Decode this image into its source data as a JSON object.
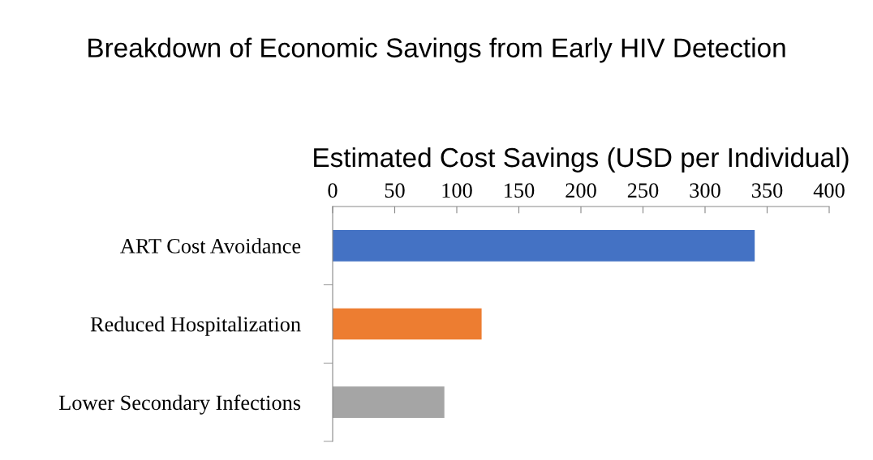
{
  "chart_data": {
    "type": "bar",
    "orientation": "horizontal",
    "title": "Breakdown of Economic Savings from Early HIV Detection",
    "xlabel": "Estimated Cost Savings (USD per Individual)",
    "categories": [
      "ART Cost Avoidance",
      "Reduced Hospitalization",
      "Lower Secondary Infections"
    ],
    "values": [
      340,
      120,
      90
    ],
    "colors": [
      "#4472c4",
      "#ed7d31",
      "#a5a5a5"
    ],
    "xlim": [
      0,
      400
    ],
    "xticks": [
      0,
      50,
      100,
      150,
      200,
      250,
      300,
      350,
      400
    ],
    "grid": false,
    "legend": false
  }
}
